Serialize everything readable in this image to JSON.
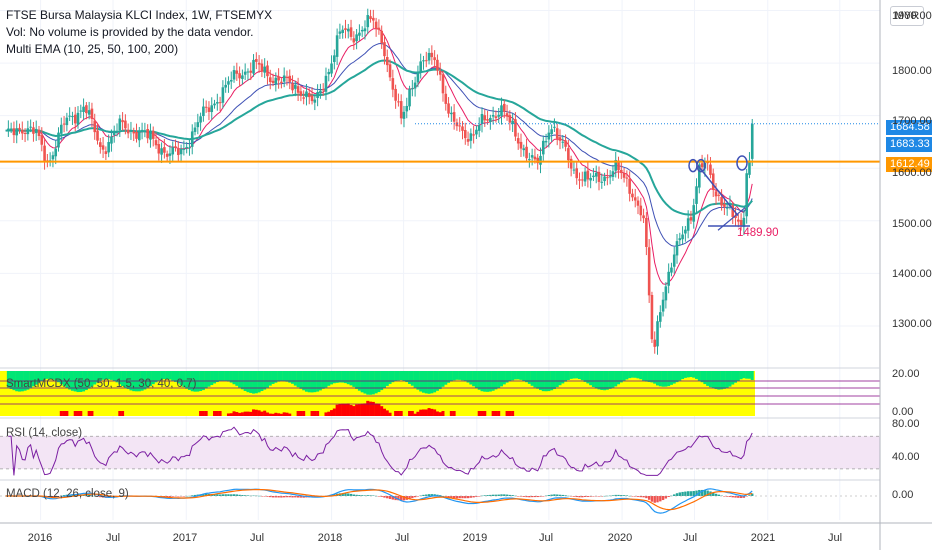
{
  "header": {
    "title": "FTSE Bursa Malaysia KLCI Index, 1W, FTSEMYX",
    "vol_note": "Vol: No volume is provided by the data vendor.",
    "ema_label": "Multi EMA (10, 25, 50, 100, 200)",
    "currency": "MYR"
  },
  "panes": {
    "smartmcdx": "SmartMCDX (50, 50, 1.5, 30, 40, 0.7)",
    "rsi": "RSI (14, close)",
    "macd": "MACD (12, 26, close, 9)"
  },
  "price_tags": {
    "last": "1684.58",
    "prev": "1683.33",
    "support": "1612.49"
  },
  "annotations": {
    "low_label": "1489.90"
  },
  "axes": {
    "price_ticks": [
      "1900.00",
      "1800.00",
      "1700.00",
      "1600.00",
      "1500.00",
      "1400.00",
      "1300.00"
    ],
    "smart_ticks": [
      "20.00",
      "0.00"
    ],
    "rsi_ticks": [
      "80.00",
      "40.00"
    ],
    "macd_ticks": [
      "0.00"
    ],
    "time_ticks": [
      "2016",
      "Jul",
      "2017",
      "Jul",
      "2018",
      "Jul",
      "2019",
      "Jul",
      "2020",
      "Jul",
      "2021",
      "Jul"
    ]
  },
  "colors": {
    "up": "#26a69a",
    "down": "#ef5350",
    "support_line": "#ff9800",
    "last_line": "#1e88e5",
    "ema_fast": "#e91e63",
    "ema_mid": "#3f51b5",
    "ema_slow": "#26a69a",
    "rsi": "#7b1fa2",
    "macd": "#2196f3",
    "signal": "#ff6d00"
  },
  "chart_data": {
    "type": "candlestick",
    "title": "FTSE Bursa Malaysia KLCI Index, 1W, FTSEMYX",
    "timeframe": "1W",
    "ylim": [
      1220,
      1920
    ],
    "x_range": [
      "2015-10",
      "2021-10"
    ],
    "anchors": [
      {
        "date": "2015-10-05",
        "close": 1660
      },
      {
        "date": "2015-11-15",
        "close": 1680
      },
      {
        "date": "2015-12-20",
        "close": 1665
      },
      {
        "date": "2016-01-20",
        "close": 1612
      },
      {
        "date": "2016-03-01",
        "close": 1685
      },
      {
        "date": "2016-04-20",
        "close": 1720
      },
      {
        "date": "2016-06-01",
        "close": 1635
      },
      {
        "date": "2016-07-20",
        "close": 1680
      },
      {
        "date": "2016-09-01",
        "close": 1670
      },
      {
        "date": "2016-10-15",
        "close": 1650
      },
      {
        "date": "2016-11-20",
        "close": 1625
      },
      {
        "date": "2016-12-20",
        "close": 1630
      },
      {
        "date": "2017-02-01",
        "close": 1690
      },
      {
        "date": "2017-04-01",
        "close": 1745
      },
      {
        "date": "2017-05-10",
        "close": 1780
      },
      {
        "date": "2017-06-20",
        "close": 1795
      },
      {
        "date": "2017-08-15",
        "close": 1770
      },
      {
        "date": "2017-10-15",
        "close": 1750
      },
      {
        "date": "2017-11-20",
        "close": 1720
      },
      {
        "date": "2017-12-20",
        "close": 1780
      },
      {
        "date": "2018-01-25",
        "close": 1860
      },
      {
        "date": "2018-03-01",
        "close": 1855
      },
      {
        "date": "2018-04-15",
        "close": 1880
      },
      {
        "date": "2018-05-10",
        "close": 1845
      },
      {
        "date": "2018-05-30",
        "close": 1760
      },
      {
        "date": "2018-06-25",
        "close": 1690
      },
      {
        "date": "2018-07-20",
        "close": 1760
      },
      {
        "date": "2018-08-20",
        "close": 1800
      },
      {
        "date": "2018-09-20",
        "close": 1815
      },
      {
        "date": "2018-10-25",
        "close": 1690
      },
      {
        "date": "2018-12-20",
        "close": 1660
      },
      {
        "date": "2019-01-20",
        "close": 1690
      },
      {
        "date": "2019-03-01",
        "close": 1715
      },
      {
        "date": "2019-05-01",
        "close": 1635
      },
      {
        "date": "2019-06-01",
        "close": 1600
      },
      {
        "date": "2019-07-05",
        "close": 1690
      },
      {
        "date": "2019-08-01",
        "close": 1645
      },
      {
        "date": "2019-09-01",
        "close": 1595
      },
      {
        "date": "2019-10-15",
        "close": 1575
      },
      {
        "date": "2019-11-15",
        "close": 1585
      },
      {
        "date": "2019-12-15",
        "close": 1600
      },
      {
        "date": "2020-01-25",
        "close": 1560
      },
      {
        "date": "2020-02-25",
        "close": 1500
      },
      {
        "date": "2020-03-19",
        "close": 1240
      },
      {
        "date": "2020-04-05",
        "close": 1340
      },
      {
        "date": "2020-05-01",
        "close": 1405
      },
      {
        "date": "2020-06-01",
        "close": 1480
      },
      {
        "date": "2020-06-25",
        "close": 1520
      },
      {
        "date": "2020-07-15",
        "close": 1600
      },
      {
        "date": "2020-08-01",
        "close": 1605
      },
      {
        "date": "2020-08-25",
        "close": 1555
      },
      {
        "date": "2020-09-20",
        "close": 1520
      },
      {
        "date": "2020-10-15",
        "close": 1500
      },
      {
        "date": "2020-10-30",
        "close": 1489.9
      },
      {
        "date": "2020-11-10",
        "close": 1610
      },
      {
        "date": "2020-11-20",
        "close": 1612
      },
      {
        "date": "2020-11-27",
        "close": 1684.58
      }
    ],
    "annotations": {
      "support_level": 1612.49,
      "last_close": 1684.58,
      "prev_tag": 1683.33,
      "recent_low": 1489.9
    },
    "indicators": [
      "Multi EMA (10, 25, 50, 100, 200)",
      "SmartMCDX (50, 50, 1.5, 30, 40, 0.7)",
      "RSI (14, close)",
      "MACD (12, 26, close, 9)"
    ]
  }
}
